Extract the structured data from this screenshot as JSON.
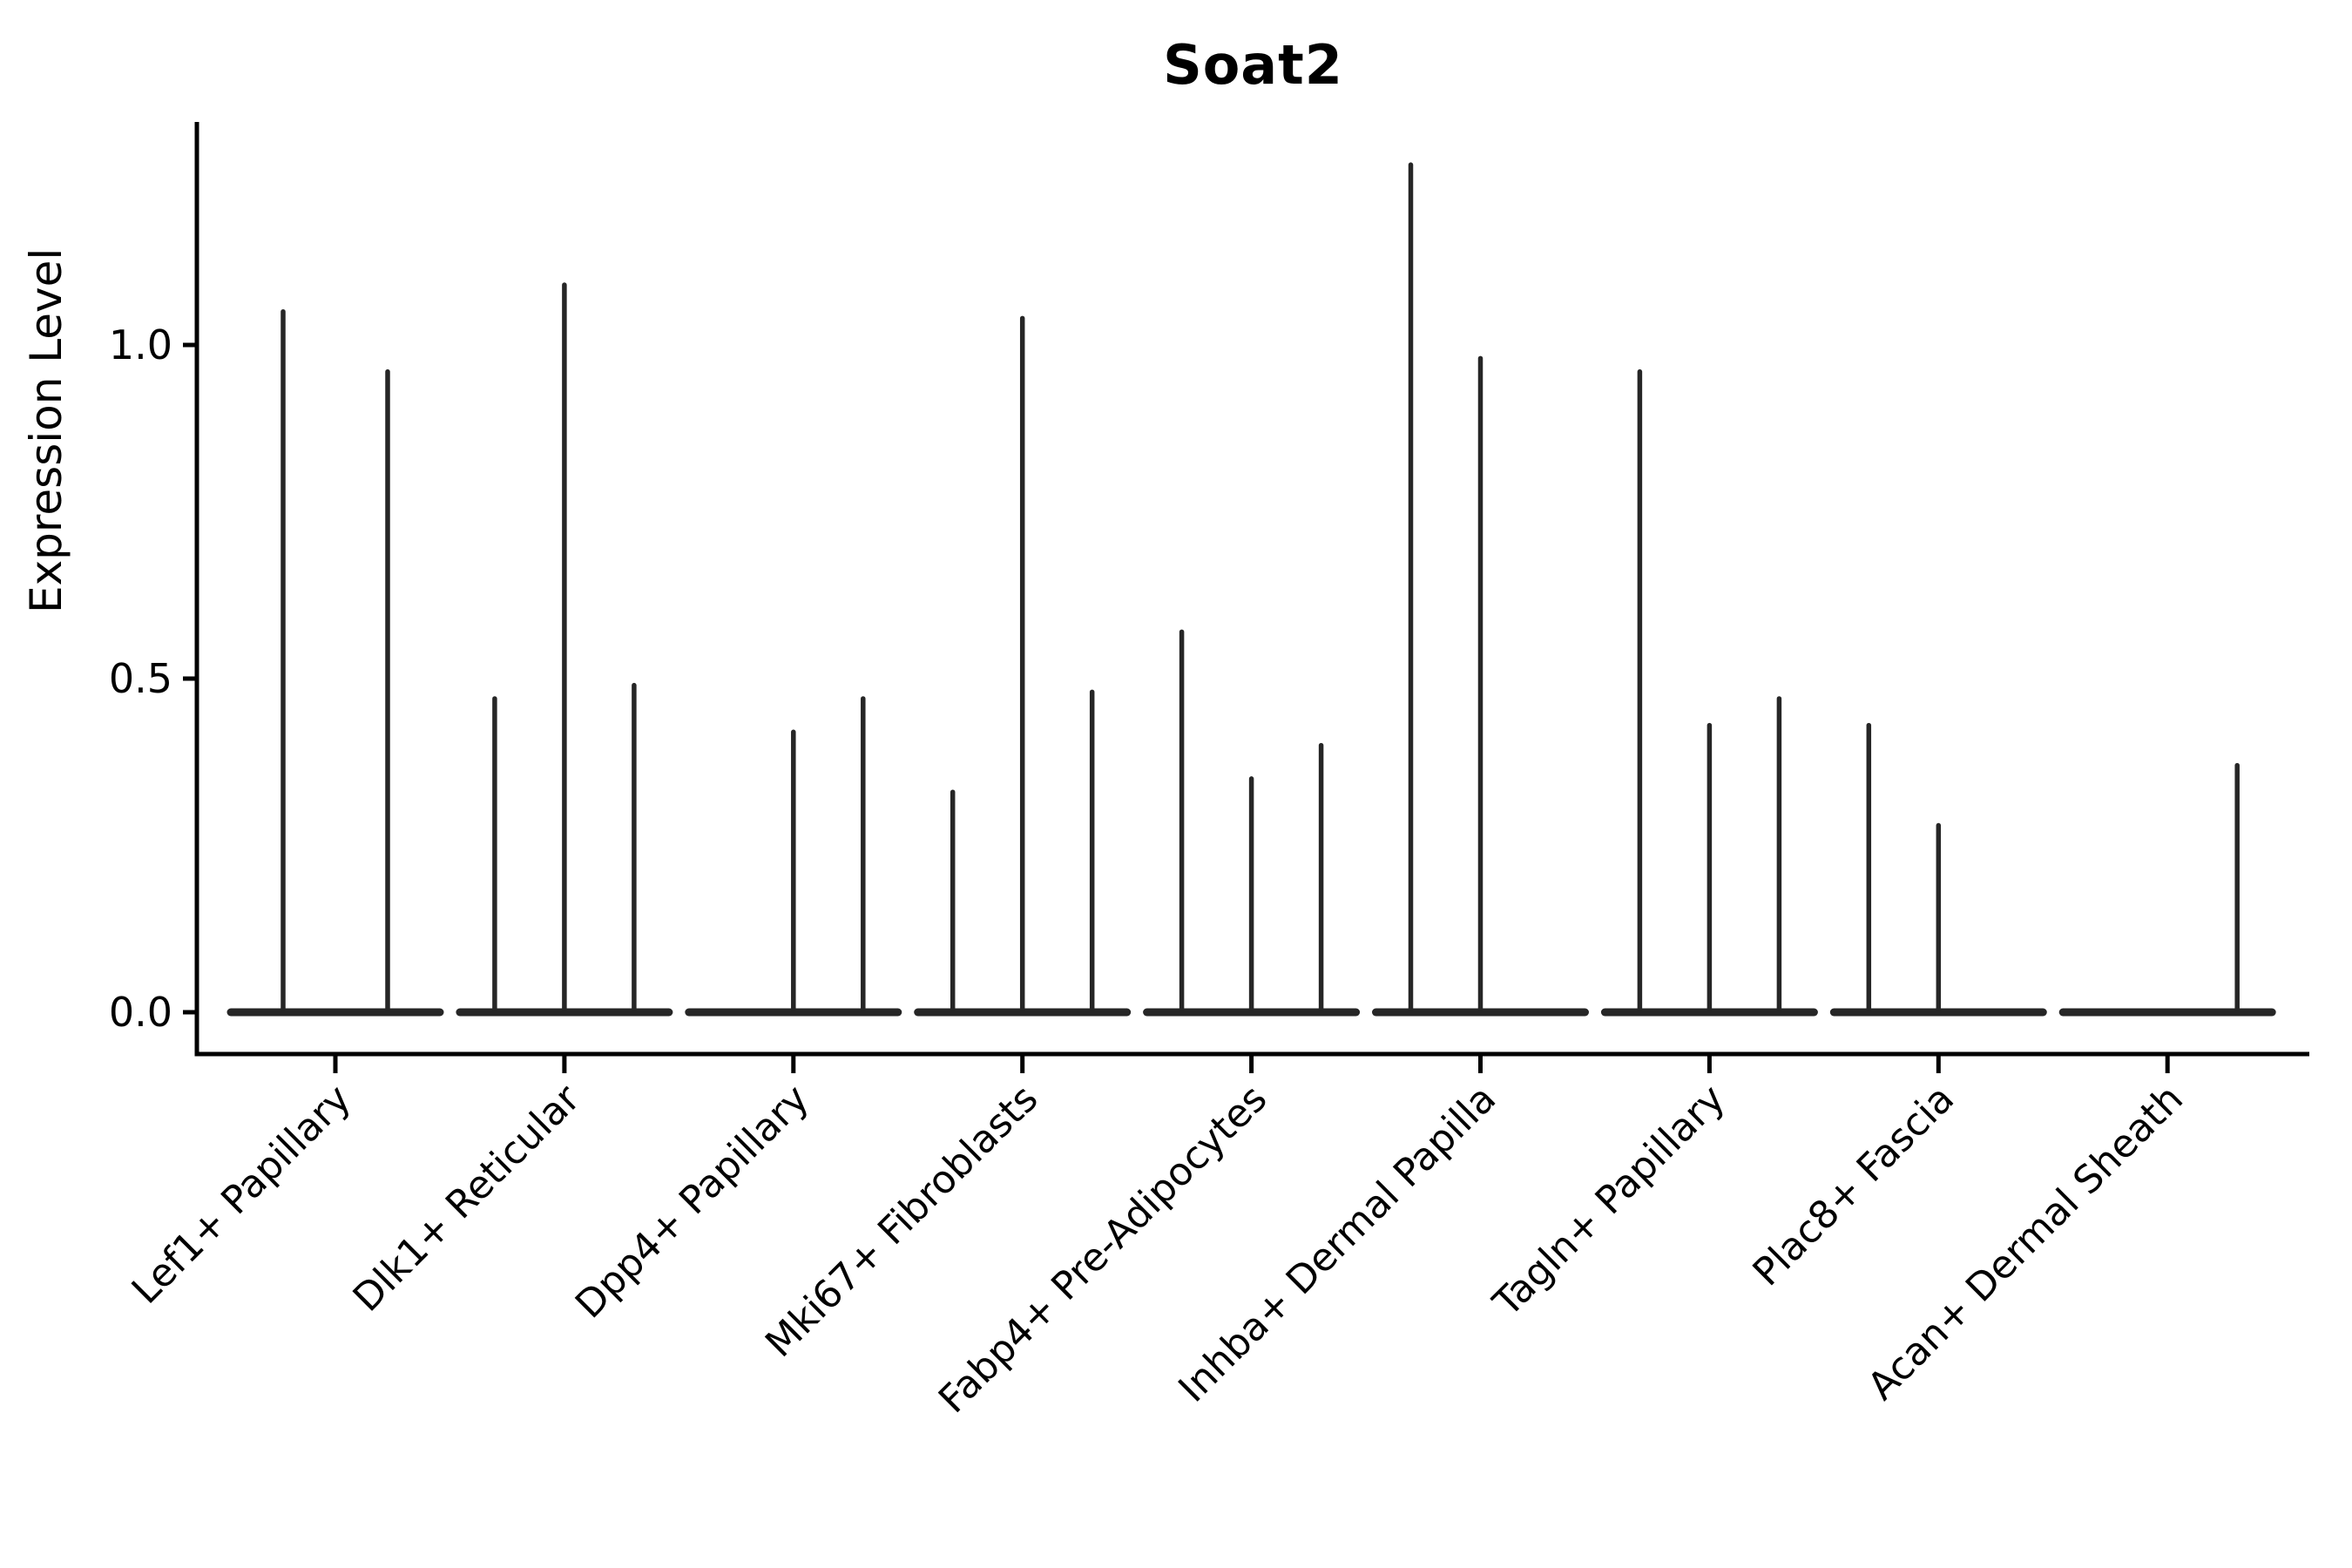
{
  "title": "Soat2",
  "y_axis": {
    "label": "Expression Level",
    "ticks": [
      {
        "label": "0.0",
        "value": 0.0
      },
      {
        "label": "0.5",
        "value": 0.5
      },
      {
        "label": "1.0",
        "value": 1.0
      }
    ]
  },
  "colors": {
    "violin": "#262626",
    "axis": "#000000",
    "text": "#000000",
    "background": "#ffffff"
  },
  "chart_data": {
    "type": "violin",
    "title": "Soat2",
    "xlabel": "",
    "ylabel": "Expression Level",
    "ylim": [
      -0.06,
      1.33
    ],
    "y_ticks": [
      0.0,
      0.5,
      1.0
    ],
    "grid": false,
    "legend_position": "none",
    "categories": [
      {
        "label": "Lef1+ Papillary",
        "violin_peaks": [
          1.05,
          0.96
        ]
      },
      {
        "label": "Dlk1+ Reticular",
        "violin_peaks": [
          0.47,
          1.09,
          0.49
        ]
      },
      {
        "label": "Dpp4+ Papillary",
        "violin_peaks": [
          0,
          0.42,
          0.47
        ]
      },
      {
        "label": "Mki67+ Fibroblasts",
        "violin_peaks": [
          0.33,
          1.04,
          0.48
        ]
      },
      {
        "label": "Fabp4+ Pre-Adipocytes",
        "violin_peaks": [
          0.57,
          0.35,
          0.4
        ]
      },
      {
        "label": "Inhba+ Dermal Papilla",
        "violin_peaks": [
          1.27,
          0.98,
          0
        ]
      },
      {
        "label": "Tagln+ Papillary",
        "violin_peaks": [
          0.96,
          0.43,
          0.47
        ]
      },
      {
        "label": "Plac8+ Fascia",
        "violin_peaks": [
          0.43,
          0.28,
          0
        ]
      },
      {
        "label": "Acan+ Dermal Sheath",
        "violin_peaks": [
          0,
          0,
          0.37
        ]
      }
    ]
  }
}
